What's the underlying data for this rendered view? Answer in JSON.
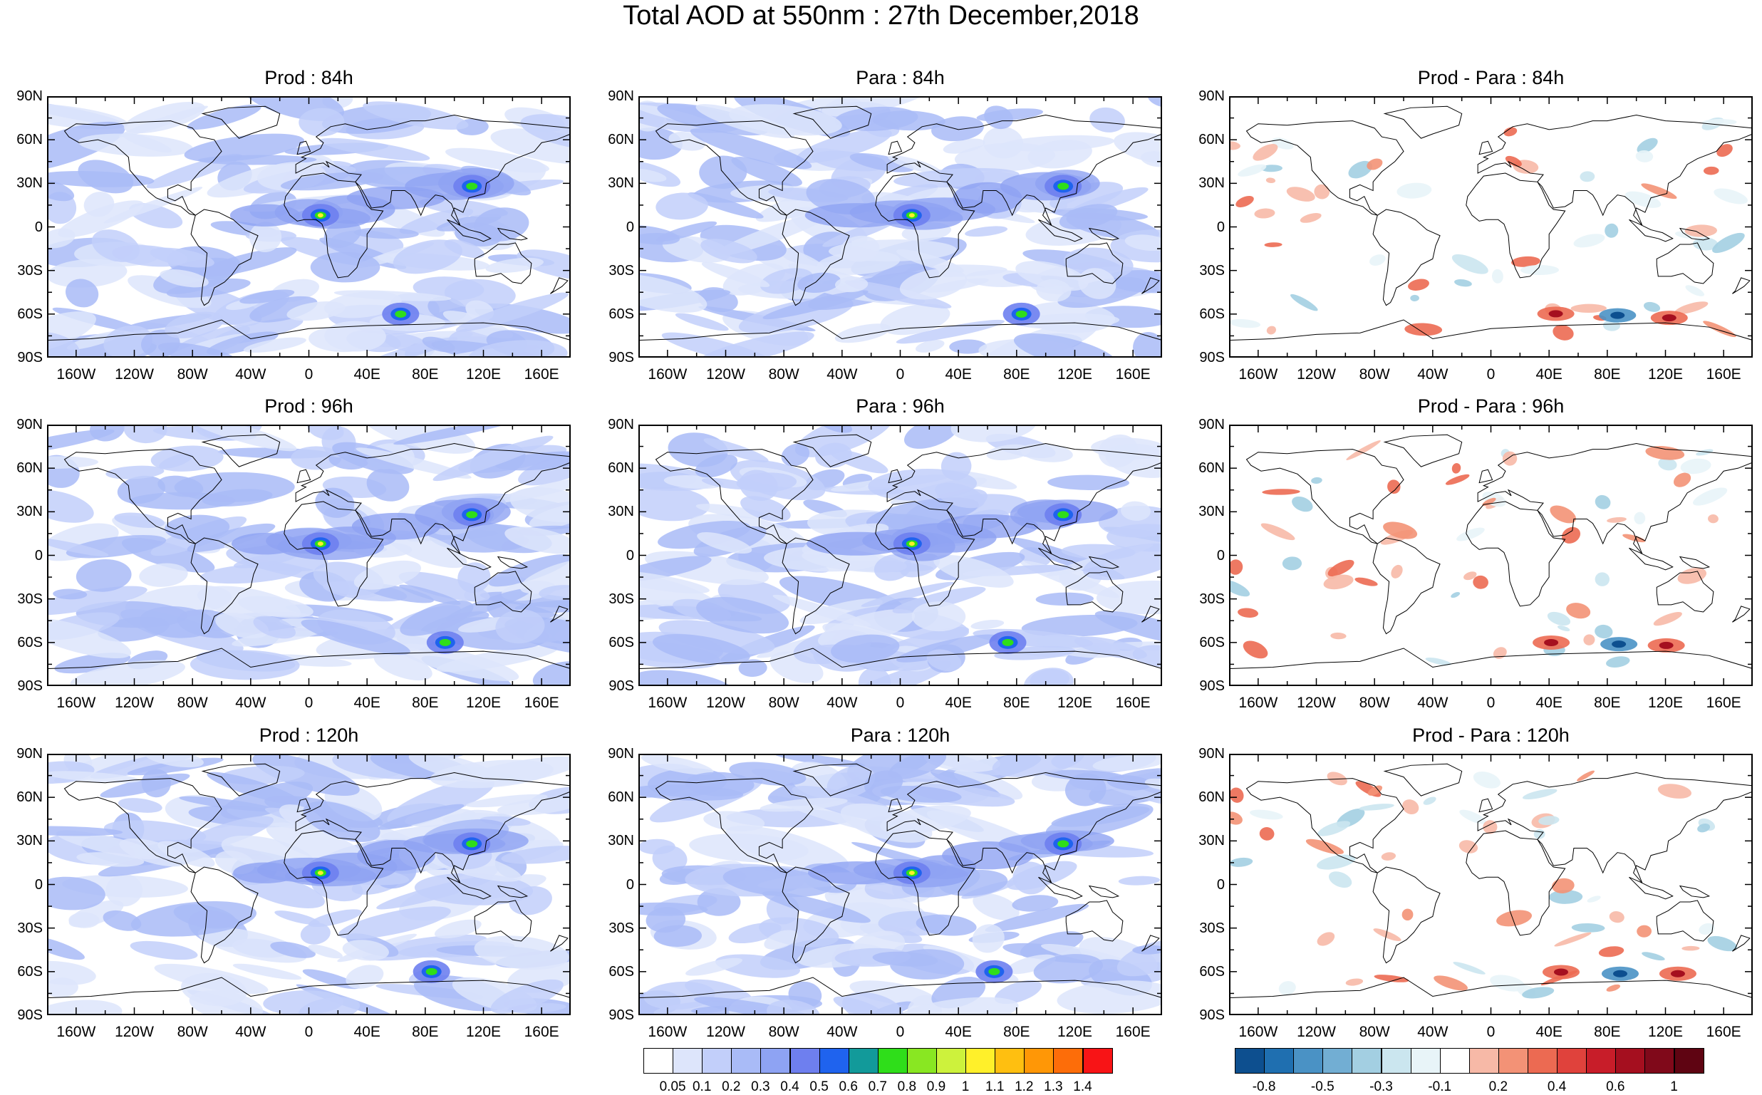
{
  "title": "Total AOD at 550nm : 27th December,2018",
  "panels": [
    {
      "title": "Prod : 84h",
      "kind": "aod",
      "seed": 11
    },
    {
      "title": "Para : 84h",
      "kind": "aod",
      "seed": 23
    },
    {
      "title": "Prod - Para : 84h",
      "kind": "diff",
      "seed": 37
    },
    {
      "title": "Prod : 96h",
      "kind": "aod",
      "seed": 41
    },
    {
      "title": "Para : 96h",
      "kind": "aod",
      "seed": 53
    },
    {
      "title": "Prod - Para : 96h",
      "kind": "diff",
      "seed": 67
    },
    {
      "title": "Prod : 120h",
      "kind": "aod",
      "seed": 71
    },
    {
      "title": "Para : 120h",
      "kind": "aod",
      "seed": 83
    },
    {
      "title": "Prod - Para : 120h",
      "kind": "diff",
      "seed": 97
    }
  ],
  "lat_ticks": [
    "90N",
    "60N",
    "30N",
    "0",
    "30S",
    "60S",
    "90S"
  ],
  "lon_ticks": [
    "160W",
    "120W",
    "80W",
    "40W",
    "0",
    "40E",
    "80E",
    "120E",
    "160E"
  ],
  "aod_colorbar": {
    "labels": [
      "0.05",
      "0.1",
      "0.2",
      "0.3",
      "0.4",
      "0.5",
      "0.6",
      "0.7",
      "0.8",
      "0.9",
      "1",
      "1.1",
      "1.2",
      "1.3",
      "1.4"
    ],
    "colors": [
      "#ffffff",
      "#dde5fb",
      "#c2cffa",
      "#a9bbf7",
      "#8ea3f3",
      "#6e7fef",
      "#1f63ee",
      "#129a9a",
      "#2fde1a",
      "#89e722",
      "#cdf23c",
      "#fff02a",
      "#ffbf10",
      "#ff9706",
      "#fd6d09",
      "#f81416"
    ]
  },
  "diff_colorbar": {
    "labels": [
      "-0.8",
      "-0.5",
      "-0.3",
      "-0.1",
      "0.2",
      "0.4",
      "0.6",
      "1"
    ],
    "colors": [
      "#0d4f8f",
      "#1f6fb0",
      "#4a92c5",
      "#72aed3",
      "#a3cfe2",
      "#cbe6ef",
      "#e8f4f8",
      "#ffffff",
      "#f7b9a7",
      "#f39276",
      "#ec6a52",
      "#e0423c",
      "#c81d29",
      "#a50f1f",
      "#80091a",
      "#5f0412"
    ]
  }
}
